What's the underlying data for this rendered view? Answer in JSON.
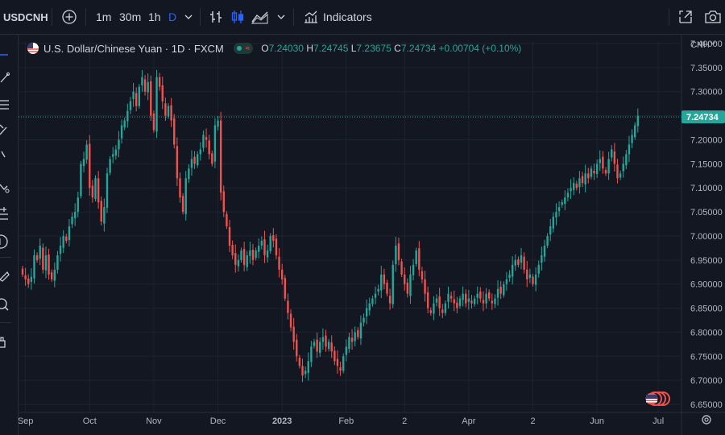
{
  "toolbar": {
    "symbol": "USDCNH",
    "intervals": [
      "1m",
      "30m",
      "1h",
      "D"
    ],
    "indicators_label": "Indicators"
  },
  "legend": {
    "title": "U.S. Dollar/Chinese Yuan · 1D · FXCM",
    "o_label": "O",
    "o": "7.24030",
    "h_label": "H",
    "h": "7.24745",
    "l_label": "L",
    "l": "7.23675",
    "c_label": "C",
    "c": "7.24734",
    "change": "+0.00704 (+0.10%)"
  },
  "price_axis": {
    "currency": "CNH",
    "last_price": "7.24734"
  },
  "colors": {
    "background": "#131722",
    "up": "#26a69a",
    "down": "#ef5350",
    "axis_text": "#b2b5be",
    "grid": "#1f2330"
  },
  "chart_data": {
    "type": "candlestick",
    "title": "U.S. Dollar/Chinese Yuan · 1D · FXCM",
    "symbol": "USDCNH",
    "y_ticks": [
      "7.40000",
      "7.35000",
      "7.30000",
      "7.25000",
      "7.20000",
      "7.15000",
      "7.10000",
      "7.05000",
      "7.00000",
      "6.95000",
      "6.90000",
      "6.85000",
      "6.80000",
      "6.75000",
      "6.70000",
      "6.65000"
    ],
    "ylim": [
      6.635,
      7.405
    ],
    "x_ticks": [
      {
        "label": "Sep",
        "i": 1
      },
      {
        "label": "Oct",
        "i": 23
      },
      {
        "label": "Nov",
        "i": 45
      },
      {
        "label": "Dec",
        "i": 67
      },
      {
        "label": "2023",
        "i": 89
      },
      {
        "label": "Feb",
        "i": 111
      },
      {
        "label": "2",
        "i": 131
      },
      {
        "label": "Apr",
        "i": 153
      },
      {
        "label": "2",
        "i": 175
      },
      {
        "label": "Jun",
        "i": 197
      },
      {
        "label": "Jul",
        "i": 218
      }
    ],
    "closes": [
      6.92,
      6.91,
      6.9,
      6.915,
      6.96,
      6.95,
      6.98,
      6.93,
      6.96,
      6.92,
      6.91,
      6.93,
      6.96,
      6.98,
      7.0,
      6.99,
      7.02,
      7.04,
      7.05,
      7.08,
      7.15,
      7.16,
      7.19,
      7.1,
      7.08,
      7.12,
      7.07,
      7.03,
      7.06,
      7.13,
      7.16,
      7.17,
      7.18,
      7.2,
      7.23,
      7.24,
      7.26,
      7.28,
      7.3,
      7.27,
      7.31,
      7.33,
      7.3,
      7.32,
      7.25,
      7.22,
      7.33,
      7.31,
      7.28,
      7.25,
      7.27,
      7.24,
      7.19,
      7.12,
      7.08,
      7.05,
      7.12,
      7.14,
      7.16,
      7.15,
      7.17,
      7.18,
      7.21,
      7.2,
      7.17,
      7.15,
      7.23,
      7.24,
      7.09,
      7.05,
      7.02,
      6.98,
      6.96,
      6.94,
      6.95,
      6.97,
      6.94,
      6.96,
      6.97,
      6.95,
      6.97,
      6.98,
      6.99,
      6.96,
      6.97,
      7.0,
      6.99,
      6.96,
      6.93,
      6.91,
      6.87,
      6.84,
      6.81,
      6.78,
      6.75,
      6.73,
      6.71,
      6.72,
      6.74,
      6.77,
      6.78,
      6.76,
      6.78,
      6.79,
      6.77,
      6.78,
      6.76,
      6.74,
      6.73,
      6.72,
      6.75,
      6.77,
      6.79,
      6.78,
      6.8,
      6.79,
      6.82,
      6.83,
      6.85,
      6.86,
      6.87,
      6.88,
      6.89,
      6.92,
      6.9,
      6.88,
      6.86,
      6.94,
      6.98,
      6.95,
      6.92,
      6.9,
      6.88,
      6.92,
      6.94,
      6.97,
      6.93,
      6.91,
      6.88,
      6.85,
      6.84,
      6.86,
      6.87,
      6.85,
      6.84,
      6.86,
      6.88,
      6.87,
      6.86,
      6.85,
      6.87,
      6.88,
      6.86,
      6.87,
      6.86,
      6.87,
      6.88,
      6.87,
      6.86,
      6.88,
      6.87,
      6.86,
      6.87,
      6.89,
      6.88,
      6.9,
      6.91,
      6.92,
      6.94,
      6.95,
      6.94,
      6.96,
      6.93,
      6.91,
      6.92,
      6.9,
      6.92,
      6.94,
      6.96,
      6.98,
      7.0,
      7.02,
      7.04,
      7.05,
      7.06,
      7.07,
      7.08,
      7.09,
      7.1,
      7.11,
      7.1,
      7.12,
      7.11,
      7.13,
      7.12,
      7.14,
      7.13,
      7.15,
      7.16,
      7.14,
      7.13,
      7.16,
      7.18,
      7.15,
      7.12,
      7.13,
      7.15,
      7.17,
      7.19,
      7.21,
      7.23,
      7.25
    ]
  }
}
